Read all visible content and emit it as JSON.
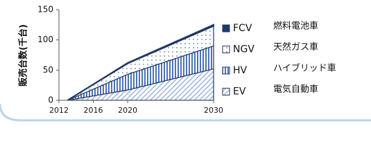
{
  "chart_data": {
    "type": "stacked_area",
    "ylabel": "販売台数(千台)",
    "x": [
      2013,
      2020,
      2030
    ],
    "xlim": [
      2012,
      2030
    ],
    "xticks": [
      2012,
      2016,
      2020,
      2030
    ],
    "ylim": [
      0,
      150
    ],
    "yticks": [
      0,
      50,
      100,
      150
    ],
    "grid": false,
    "series": [
      {
        "name": "FCV",
        "description": "燃料電池車",
        "color": "#1f3864",
        "pattern": "solid",
        "values": [
          0,
          1,
          2
        ]
      },
      {
        "name": "NGV",
        "description": "天然ガス車",
        "color": "#1f3864",
        "pattern": "dots",
        "values": [
          0,
          18,
          33
        ]
      },
      {
        "name": "HV",
        "description": "ハイブリッド車",
        "color": "#4a72c4",
        "pattern": "vertical",
        "values": [
          0,
          26,
          38
        ]
      },
      {
        "name": "EV",
        "description": "電気自動車",
        "color": "#8faadc",
        "pattern": "diagonal",
        "values": [
          0,
          17,
          52
        ]
      }
    ]
  }
}
